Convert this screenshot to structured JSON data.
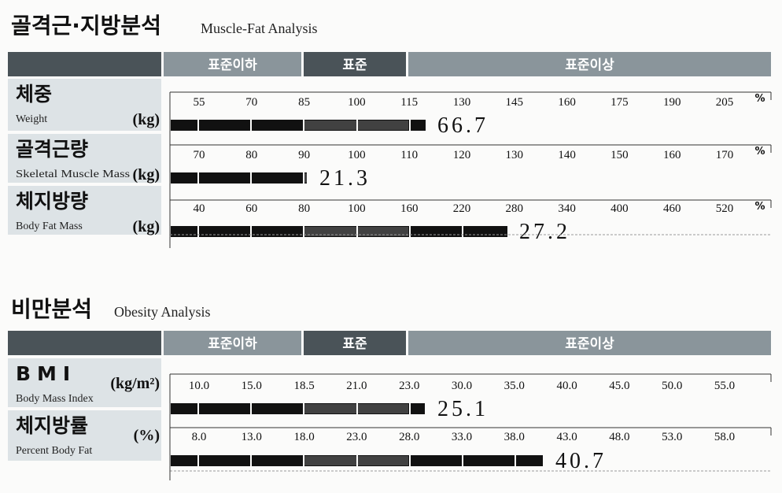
{
  "sections": [
    {
      "title": "골격근·지방분석",
      "subtitle": "Muscle-Fat Analysis",
      "header": {
        "below": "표준이하",
        "standard": "표준",
        "above": "표준이상"
      },
      "rows": [
        {
          "name": "체중",
          "name_en": "Weight",
          "unit": "(kg)",
          "scale_unit": "%",
          "ticks": [
            "55",
            "70",
            "85",
            "100",
            "115",
            "130",
            "145",
            "160",
            "175",
            "190",
            "205"
          ],
          "value": "66.7"
        },
        {
          "name": "골격근량",
          "name_en": "Skeletal Muscle Mass",
          "unit": "(kg)",
          "scale_unit": "%",
          "ticks": [
            "70",
            "80",
            "90",
            "100",
            "110",
            "120",
            "130",
            "140",
            "150",
            "160",
            "170"
          ],
          "value": "21.3"
        },
        {
          "name": "체지방량",
          "name_en": "Body Fat Mass",
          "unit": "(kg)",
          "scale_unit": "%",
          "ticks": [
            "40",
            "60",
            "80",
            "100",
            "160",
            "220",
            "280",
            "340",
            "400",
            "460",
            "520"
          ],
          "value": "27.2"
        }
      ]
    },
    {
      "title": "비만분석",
      "subtitle": "Obesity Analysis",
      "header": {
        "below": "표준이하",
        "standard": "표준",
        "above": "표준이상"
      },
      "rows": [
        {
          "name": "BMI",
          "name_en": "Body Mass Index",
          "unit": "(kg/m²)",
          "ticks": [
            "10.0",
            "15.0",
            "18.5",
            "21.0",
            "23.0",
            "30.0",
            "35.0",
            "40.0",
            "45.0",
            "50.0",
            "55.0"
          ],
          "value": "25.1"
        },
        {
          "name": "체지방률",
          "name_en": "Percent Body Fat",
          "unit": "(%)",
          "ticks": [
            "8.0",
            "13.0",
            "18.0",
            "23.0",
            "28.0",
            "33.0",
            "38.0",
            "43.0",
            "48.0",
            "53.0",
            "58.0"
          ],
          "value": "40.7"
        }
      ]
    }
  ]
}
